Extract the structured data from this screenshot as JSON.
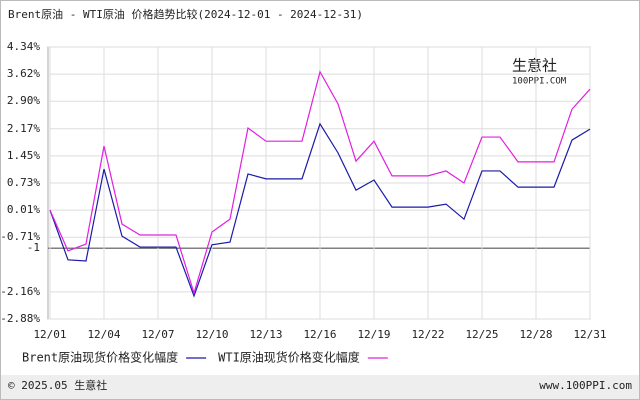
{
  "chart_data": {
    "type": "line",
    "title": "Brent原油 - WTI原油 价格趋势比较(2024-12-01 - 2024-12-31)",
    "categories": [
      "12/01",
      null,
      null,
      "12/04",
      null,
      null,
      "12/07",
      null,
      null,
      "12/10",
      null,
      null,
      "12/13",
      null,
      null,
      "12/16",
      null,
      null,
      "12/19",
      null,
      null,
      "12/22",
      null,
      null,
      "12/25",
      null,
      null,
      "12/28",
      null,
      null,
      "12/31"
    ],
    "series": [
      {
        "name": "Brent原油现货价格变化幅度",
        "color": "#1a1aa8",
        "values": [
          0.01,
          -1.31,
          -1.34,
          1.1,
          -0.68,
          -0.97,
          -0.97,
          -0.97,
          -2.27,
          -0.91,
          -0.84,
          0.97,
          0.84,
          0.84,
          0.84,
          2.3,
          1.53,
          0.54,
          0.81,
          0.09,
          0.09,
          0.09,
          0.17,
          -0.23,
          1.05,
          1.05,
          0.62,
          0.62,
          0.62,
          1.87,
          2.16
        ]
      },
      {
        "name": "WTI原油现货价格变化幅度",
        "color": "#e020e0",
        "values": [
          0.01,
          -1.07,
          -0.89,
          1.71,
          -0.36,
          -0.65,
          -0.65,
          -0.65,
          -2.19,
          -0.57,
          -0.23,
          2.19,
          1.84,
          1.84,
          1.84,
          3.68,
          2.83,
          1.31,
          1.84,
          0.92,
          0.92,
          0.92,
          1.05,
          0.73,
          1.95,
          1.95,
          1.29,
          1.29,
          1.29,
          2.69,
          3.22
        ]
      }
    ],
    "ylim": [
      -2.88,
      4.34
    ],
    "yticks": [
      {
        "value": 4.34,
        "label": "4.34%"
      },
      {
        "value": 3.62,
        "label": "3.62%"
      },
      {
        "value": 2.9,
        "label": "2.90%"
      },
      {
        "value": 2.17,
        "label": "2.17%"
      },
      {
        "value": 1.45,
        "label": "1.45%"
      },
      {
        "value": 0.73,
        "label": "0.73%"
      },
      {
        "value": 0.01,
        "label": "0.01%"
      },
      {
        "value": -0.71,
        "label": "-0.71%"
      },
      -1,
      {
        "value": -2.16,
        "label": "-2.16%"
      },
      {
        "value": -2.88,
        "label": "-2.88%"
      }
    ],
    "grid": true,
    "watermark": [
      "生意社",
      "100PPI.COM"
    ],
    "footer": [
      "© 2025.05 生意社",
      "www.100PPI.com"
    ]
  }
}
